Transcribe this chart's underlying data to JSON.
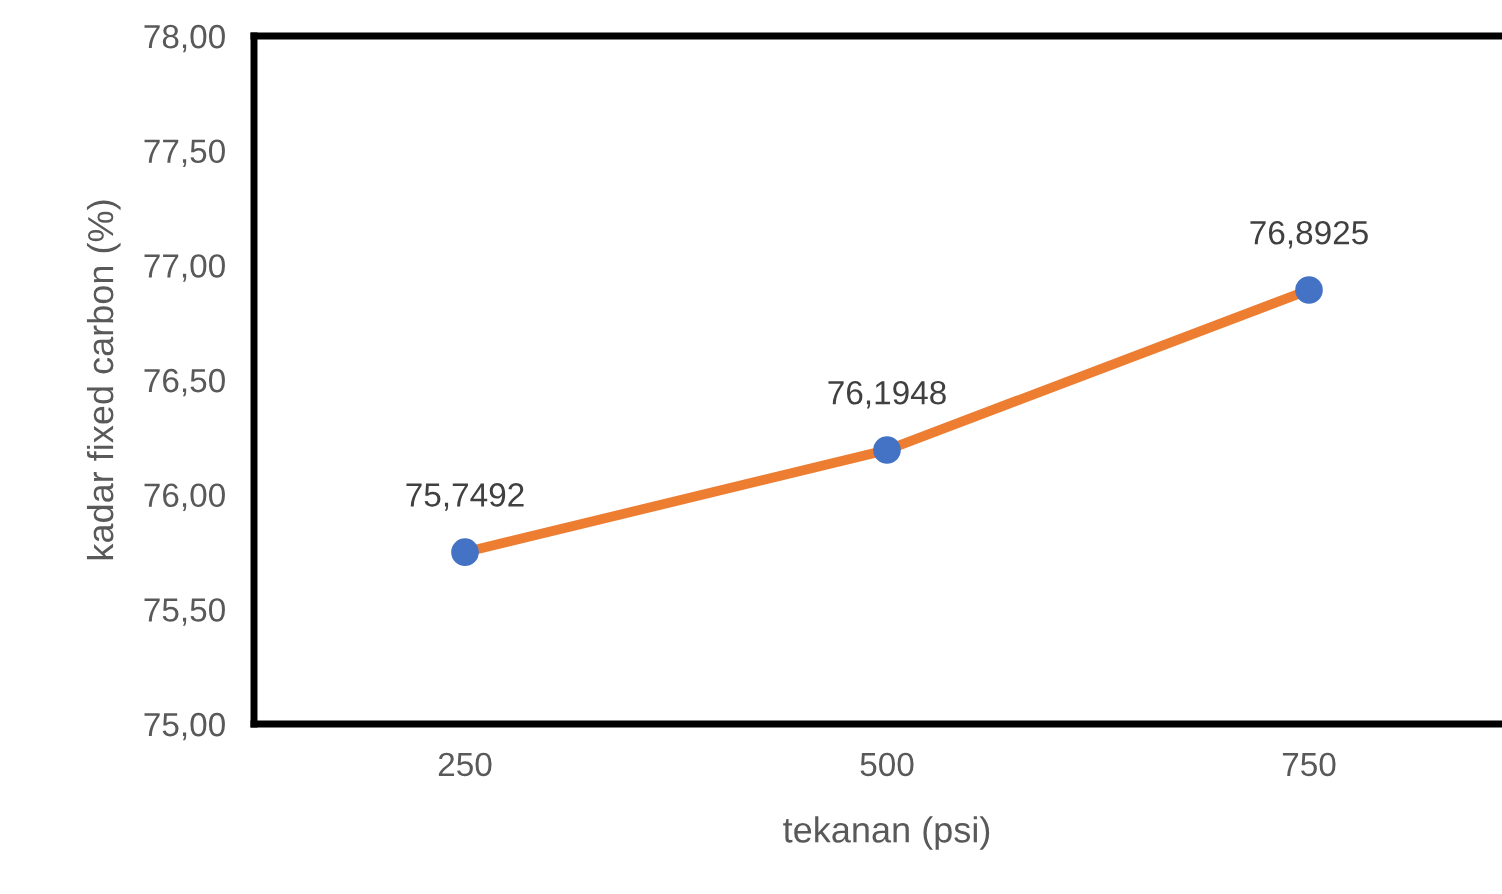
{
  "chart_data": {
    "type": "line",
    "xlabel": "tekanan (psi)",
    "ylabel": "kadar fixed carbon (%)",
    "categories": [
      "250",
      "500",
      "750"
    ],
    "series": [
      {
        "color": "#ed7d31",
        "colors": [
          "#4472c4",
          "#4472c4",
          "#4472c4"
        ],
        "values": [
          75.7492,
          76.1948,
          76.8925
        ],
        "value_labels": [
          "75,7492",
          "76,1948",
          "76,8925"
        ]
      }
    ],
    "ylim": [
      75,
      78
    ],
    "yticks": [
      {
        "value": 75,
        "label": "75,00"
      },
      {
        "value": 75.5,
        "label": "75,50"
      },
      {
        "value": 76,
        "label": "76,00"
      },
      {
        "value": 76.5,
        "label": "76,50"
      },
      {
        "value": 77,
        "label": "77,00"
      },
      {
        "value": 77.5,
        "label": "77,50"
      },
      {
        "value": 78,
        "label": "78,00"
      }
    ],
    "grid": false,
    "marker": "circle",
    "line_style": "solid"
  }
}
